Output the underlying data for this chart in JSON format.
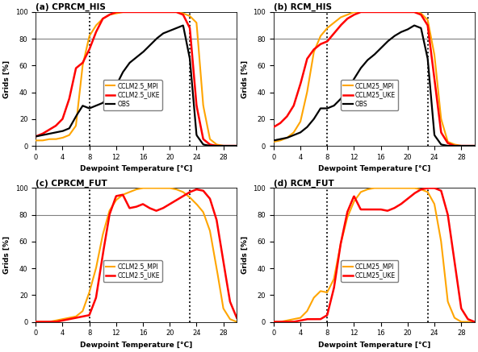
{
  "td": [
    0,
    1,
    2,
    3,
    4,
    5,
    6,
    7,
    8,
    9,
    10,
    11,
    12,
    13,
    14,
    15,
    16,
    17,
    18,
    19,
    20,
    21,
    22,
    23,
    24,
    25,
    26,
    27,
    28,
    29,
    30
  ],
  "panel_titles": [
    "(a) CPRCM_HIS",
    "(b) RCM_HIS",
    "(c) CPRCM_FUT",
    "(d) RCM_FUT"
  ],
  "vlines": [
    8,
    23
  ],
  "hline": 80,
  "xlabel": "Dewpoint Temperature [°C]",
  "ylabel": "Grids [%]",
  "ylim": [
    0,
    100
  ],
  "xlim": [
    0,
    30
  ],
  "xticks": [
    0,
    4,
    8,
    12,
    16,
    20,
    24,
    28
  ],
  "yticks": [
    0,
    20,
    40,
    60,
    80,
    100
  ],
  "color_mpi": "#FFA500",
  "color_uke": "#FF0000",
  "color_obs": "#000000",
  "a_mpi": [
    4,
    4,
    5,
    5,
    6,
    8,
    15,
    60,
    82,
    90,
    95,
    98,
    99,
    100,
    100,
    100,
    100,
    100,
    100,
    100,
    100,
    100,
    99,
    97,
    92,
    30,
    5,
    1,
    0,
    0,
    0
  ],
  "a_uke": [
    7,
    9,
    12,
    15,
    20,
    35,
    58,
    62,
    72,
    85,
    95,
    98,
    100,
    100,
    100,
    100,
    100,
    100,
    100,
    100,
    100,
    100,
    98,
    88,
    30,
    5,
    1,
    0,
    0,
    0,
    0
  ],
  "a_obs": [
    7,
    8,
    9,
    10,
    11,
    13,
    22,
    30,
    28,
    30,
    32,
    38,
    45,
    55,
    62,
    66,
    70,
    75,
    80,
    84,
    86,
    88,
    90,
    65,
    8,
    1,
    0,
    0,
    0,
    0,
    0
  ],
  "b_mpi": [
    3,
    4,
    6,
    10,
    18,
    40,
    70,
    82,
    88,
    92,
    96,
    98,
    100,
    100,
    100,
    100,
    100,
    100,
    100,
    100,
    100,
    100,
    99,
    94,
    68,
    20,
    3,
    1,
    0,
    0,
    0
  ],
  "b_uke": [
    14,
    17,
    22,
    30,
    46,
    65,
    72,
    76,
    78,
    84,
    90,
    95,
    98,
    100,
    100,
    100,
    100,
    100,
    100,
    100,
    100,
    100,
    98,
    90,
    50,
    10,
    2,
    0,
    0,
    0,
    0
  ],
  "b_obs": [
    4,
    5,
    6,
    8,
    10,
    14,
    20,
    28,
    28,
    30,
    35,
    42,
    50,
    58,
    64,
    68,
    73,
    78,
    82,
    85,
    87,
    90,
    88,
    65,
    8,
    1,
    0,
    0,
    0,
    0,
    0
  ],
  "c_mpi": [
    0,
    0,
    0,
    1,
    2,
    3,
    4,
    8,
    22,
    40,
    65,
    83,
    91,
    95,
    97,
    99,
    100,
    100,
    100,
    100,
    100,
    99,
    97,
    93,
    88,
    82,
    68,
    40,
    10,
    2,
    0
  ],
  "c_uke": [
    0,
    0,
    0,
    0,
    1,
    2,
    3,
    4,
    5,
    18,
    50,
    80,
    94,
    95,
    85,
    86,
    88,
    85,
    83,
    85,
    88,
    91,
    94,
    97,
    99,
    98,
    92,
    76,
    45,
    15,
    3
  ],
  "d_mpi": [
    0,
    0,
    1,
    2,
    3,
    8,
    18,
    23,
    22,
    32,
    58,
    78,
    90,
    97,
    99,
    100,
    100,
    100,
    100,
    100,
    100,
    100,
    99,
    97,
    88,
    60,
    15,
    3,
    0,
    0,
    0
  ],
  "d_uke": [
    0,
    0,
    0,
    0,
    1,
    2,
    2,
    2,
    5,
    25,
    58,
    82,
    94,
    84,
    84,
    84,
    84,
    83,
    85,
    88,
    92,
    96,
    99,
    100,
    100,
    98,
    80,
    45,
    10,
    2,
    0
  ]
}
